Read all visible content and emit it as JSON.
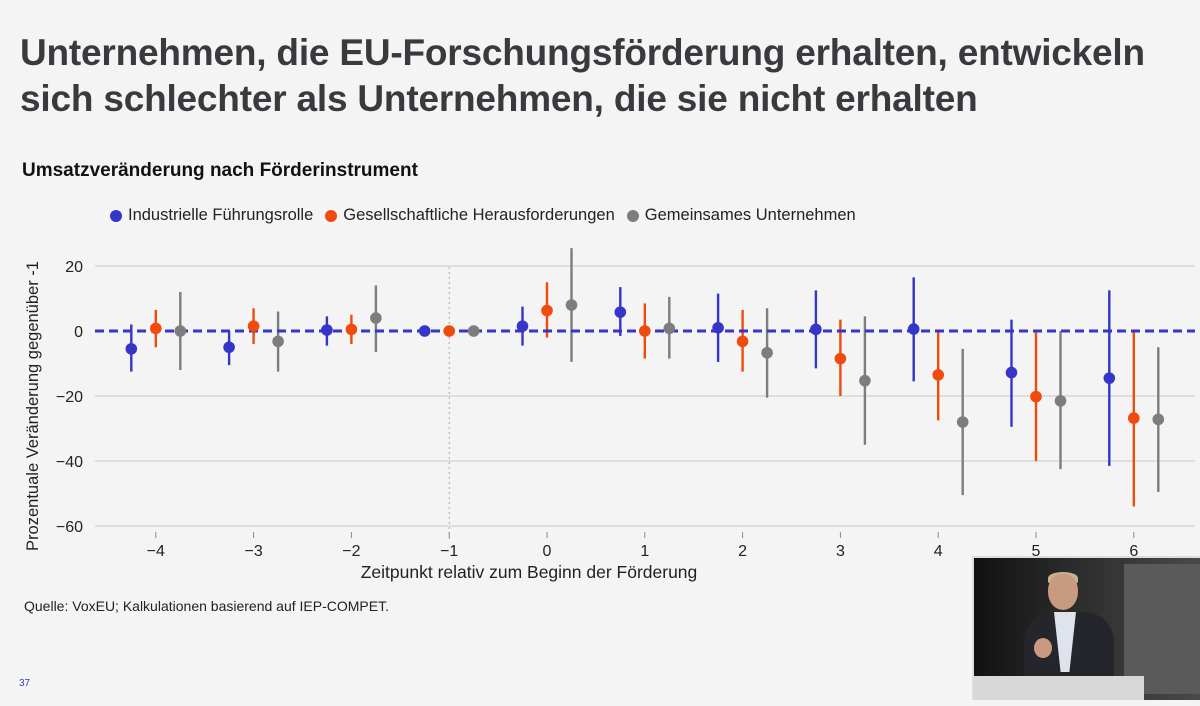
{
  "slide": {
    "title": "Unternehmen, die EU-Forschungsförderung erhalten, entwickeln sich schlechter als Unternehmen, die sie nicht erhalten",
    "chart_heading": "Umsatzveränderung nach Förderinstrument",
    "source": "Quelle: VoxEU; Kalkulationen basierend auf IEP-COMPET.",
    "page_number": "37"
  },
  "legend": [
    {
      "label": "Industrielle Führungsrolle",
      "color": "#3535c8"
    },
    {
      "label": "Gesellschaftliche Herausforderungen",
      "color": "#f04a0c"
    },
    {
      "label": "Gemeinsames Unternehmen",
      "color": "#7d7d7d"
    }
  ],
  "chart_data": {
    "type": "scatter",
    "title": "Umsatzveränderung nach Förderinstrument",
    "xlabel": "Zeitpunkt relativ zum Beginn der Förderung",
    "ylabel": "Prozentuale Veränderung gegenüber -1",
    "categories": [
      -4,
      -3,
      -2,
      -1,
      0,
      1,
      2,
      3,
      4,
      5,
      6
    ],
    "x_tick_labels": [
      "−4",
      "−3",
      "−2",
      "−1",
      "0",
      "1",
      "2",
      "3",
      "4",
      "5",
      "6"
    ],
    "y_ticks": [
      20,
      0,
      -20,
      -40,
      -60
    ],
    "y_tick_labels": [
      "20",
      "0",
      "−20",
      "−40",
      "−60"
    ],
    "ylim": [
      -65,
      27
    ],
    "grid": true,
    "reference_line": 0,
    "series": [
      {
        "name": "Industrielle Führungsrolle",
        "color": "#3535c8",
        "values": [
          -5.5,
          -5,
          0.3,
          0,
          1.5,
          5.8,
          1,
          0.5,
          0.6,
          -12.8,
          -14.5
        ],
        "lower": [
          -12.5,
          -10.5,
          -4.5,
          0,
          -4.5,
          -1.5,
          -9.5,
          -11.5,
          -15.5,
          -29.5,
          -41.5
        ],
        "upper": [
          2,
          0,
          4.5,
          0,
          7.5,
          13.5,
          11.5,
          12.5,
          16.5,
          3.5,
          12.5
        ]
      },
      {
        "name": "Gesellschaftliche Herausforderungen",
        "color": "#f04a0c",
        "values": [
          0.8,
          1.5,
          0.5,
          0,
          6.3,
          0,
          -3.2,
          -8.5,
          -13.5,
          -20.2,
          -26.8
        ],
        "lower": [
          -5,
          -4,
          -4,
          0,
          -2,
          -8.5,
          -12.5,
          -20,
          -27.5,
          -40,
          -54
        ],
        "upper": [
          6.5,
          7,
          5,
          0,
          15,
          8.5,
          6.5,
          3.5,
          0,
          0,
          0
        ]
      },
      {
        "name": "Gemeinsames Unternehmen",
        "color": "#7d7d7d",
        "values": [
          0,
          -3.2,
          4,
          0,
          8,
          0.8,
          -6.7,
          -15.3,
          -28,
          -21.5,
          -27.2
        ],
        "lower": [
          -12,
          -12.5,
          -6.5,
          0,
          -9.5,
          -8.5,
          -20.5,
          -35,
          -50.5,
          -42.5,
          -49.5
        ],
        "upper": [
          12,
          6,
          14,
          0,
          25.5,
          10.5,
          7,
          4.5,
          -5.5,
          0,
          -5
        ]
      }
    ]
  }
}
